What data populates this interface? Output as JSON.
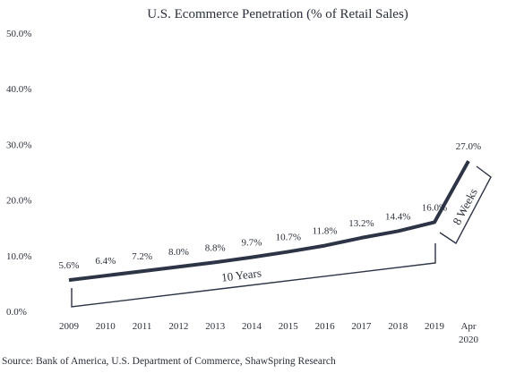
{
  "chart_data": {
    "type": "line",
    "title": "U.S. Ecommerce Penetration (% of Retail Sales)",
    "xlabel": "",
    "ylabel": "",
    "categories": [
      "2009",
      "2010",
      "2011",
      "2012",
      "2013",
      "2014",
      "2015",
      "2016",
      "2017",
      "2018",
      "2019",
      "Apr 2020"
    ],
    "values": [
      5.6,
      6.4,
      7.2,
      8.0,
      8.8,
      9.7,
      10.7,
      11.8,
      13.2,
      14.4,
      16.0,
      27.0
    ],
    "data_labels": [
      "5.6%",
      "6.4%",
      "7.2%",
      "8.0%",
      "8.8%",
      "9.7%",
      "10.7%",
      "11.8%",
      "13.2%",
      "14.4%",
      "16.0%",
      "27.0%"
    ],
    "y_ticks": [
      "0.0%",
      "10.0%",
      "20.0%",
      "30.0%",
      "40.0%",
      "50.0%"
    ],
    "ylim": [
      0,
      50
    ],
    "grid": false,
    "line_color": "#2d3446",
    "annotations": [
      {
        "text": "10 Years",
        "span": [
          "2009",
          "2019"
        ]
      },
      {
        "text": "8 Weeks",
        "span": [
          "2019",
          "Apr 2020"
        ]
      }
    ]
  },
  "source_text": "Source: Bank of America, U.S. Department of Commerce, ShawSpring Research"
}
